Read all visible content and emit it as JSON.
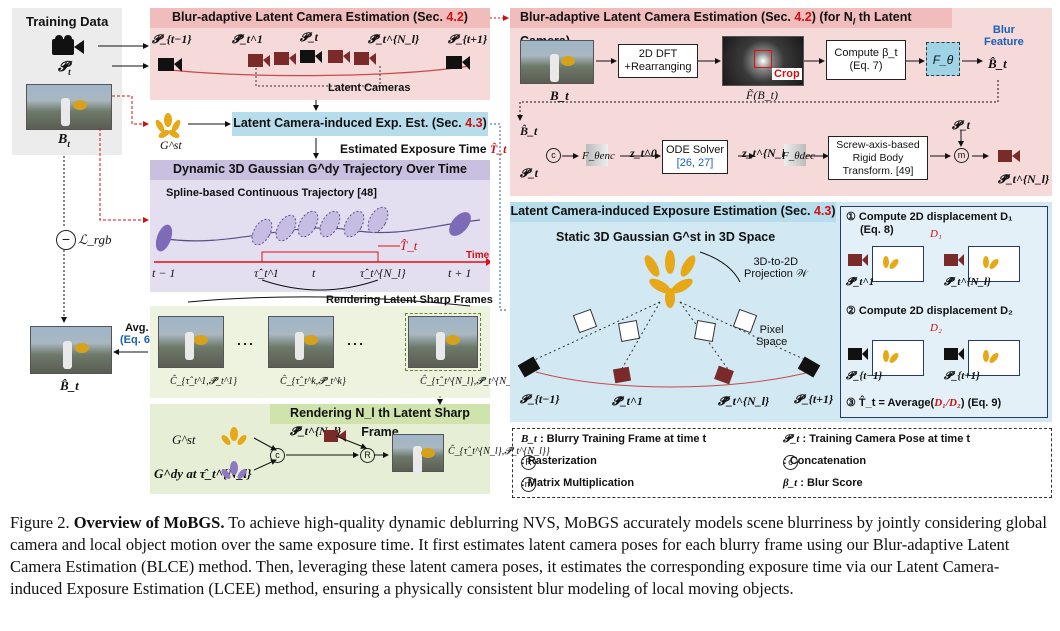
{
  "training_data": {
    "title": "Training Data",
    "pose": "𝓟",
    "pose_sub": "t",
    "frame": "B",
    "frame_sub": "t"
  },
  "blce": {
    "title_prefix": "Blur-adaptive Latent Camera Estimation (Sec. ",
    "title_ref": "4.2",
    "title_suffix": ")",
    "cams": [
      "𝓟_{t−1}",
      "𝓟̂_t^1",
      "𝓟_t",
      "𝓟̂_t^{N_l}",
      "𝓟_{t+1}"
    ],
    "latent_label": "Latent Cameras"
  },
  "blce_detail": {
    "title_prefix": "Blur-adaptive Latent Camera Estimation (Sec. ",
    "title_ref": "4.2",
    "title_suffix": ") (for N",
    "title_end": " th Latent Camera)",
    "dft": "2D DFT\n+Rearranging",
    "crop": "Crop",
    "fft_label": "F̃(B_t)",
    "compute_beta": "Compute β_t",
    "eq": "(Eq. 7)",
    "ftheta": "F_θ",
    "blur_feature": "Blur\nFeature",
    "blur_feature_sym": "B̂_t",
    "bt": "B_t",
    "ode": "ODE Solver",
    "ode_refs": "[26, 27]",
    "screw": "Screw-axis-based\nRigid Body\nTransform. [49]",
    "fenc": "F_θenc",
    "fdec": "F_θdec",
    "z0": "z_t^0",
    "znl": "z_t^{N_l}",
    "pt": "𝓟_t",
    "pout": "𝓟̂_t^{N_l}"
  },
  "lcee_small": {
    "title_prefix": "Latent Camera-induced Exp. Est. (Sec. ",
    "title_ref": "4.3",
    "title_suffix": ")",
    "gst": "G^st",
    "est_exp": "Estimated Exposure Time",
    "est_sym": "T̂_t"
  },
  "dynamic": {
    "title": "Dynamic 3D Gaussian G^dy Trajectory Over Time",
    "spline": "Spline-based Continuous Trajectory [48]",
    "time": "Time",
    "ticks": [
      "t − 1",
      "τ̂_t^1",
      "t",
      "τ̂_t^{N_l}",
      "t + 1"
    ],
    "rendering": "Rendering Latent Sharp Frames",
    "tsym": "T̂_t"
  },
  "render": {
    "avg": "Avg.",
    "eq": "(Eq. 6)",
    "out": "B̂_t",
    "lrgb": "ℒ_rgb",
    "labels": [
      "Ĉ_{τ̂_t^1,𝓟̂_t^1}",
      "Ĉ_{τ̂_t^k,𝓟̂_t^k}",
      "Ĉ_{τ̂_t^{N_l},𝓟̂_t^{N_l}}"
    ],
    "dots": "⋯"
  },
  "render_nl": {
    "title": "Rendering N_l th Latent Sharp Frame",
    "gst": "G^st",
    "gdy": "G^dy at τ̂_t^{N_l}",
    "pose": "𝓟̂_t^{N_l}",
    "out": "Ĉ_{τ̂_t^{N_l},𝓟̂_t^{N_l}}"
  },
  "lcee": {
    "title_prefix": "Latent Camera-induced Exposure Estimation (Sec. ",
    "title_ref": "4.3",
    "title_suffix": ")",
    "static": "Static 3D Gaussian G^st in 3D Space",
    "proj": "3D-to-2D\nProjection 𝒲",
    "pixel": "Pixel\nSpace",
    "cams": [
      "𝓟_{t−1}",
      "𝓟̂_t^1",
      "𝓟̂_t^{N_l}",
      "𝓟_{t+1}"
    ],
    "step1": "① Compute 2D displacement D₁",
    "step1_eq": "(Eq. 8)",
    "step2": "② Compute 2D displacement D₂",
    "step3_prefix": "③  T̂_t = Average(",
    "step3_mid": "D₁/D₂",
    "step3_suffix": ") (Eq. 9)",
    "d1": "D₁",
    "d2": "D₂",
    "cam_labels_1": [
      "𝓟̂_t^1",
      "𝓟̂_t^{N_l}"
    ],
    "cam_labels_2": [
      "𝓟_{t−1}",
      "𝓟_{t+1}"
    ]
  },
  "legend": {
    "items": [
      {
        "sym": "B_t",
        "text": " : Blurry Training Frame at time t"
      },
      {
        "sym": "𝓟_t",
        "text": " : Training Camera Pose at time t"
      },
      {
        "sym": "R",
        "text": " : Rasterization"
      },
      {
        "sym": "c",
        "text": " : Concatenation"
      },
      {
        "sym": "m",
        "text": " : Matrix Multiplication"
      },
      {
        "sym": "β_t",
        "text": " : Blur Score"
      }
    ]
  },
  "caption": {
    "label": "Figure 2. ",
    "title": "Overview of MoBGS.",
    "body": " To achieve high-quality dynamic deblurring NVS, MoBGS accurately models scene blurriness by jointly considering global camera and local object motion over the same exposure time.  It first estimates latent camera poses for each blurry frame using our Blur-adaptive Latent Camera Estimation (BLCE) method.  Then, leveraging these latent camera poses, it estimates the corresponding exposure time via our Latent Camera-induced Exposure Estimation (LCEE) method, ensuring a physically consistent blur modeling of local moving objects."
  },
  "colors": {
    "pink": "#f4d5d5",
    "pink_hdr": "#f0bcbc",
    "blue": "#d2e8f2",
    "blue_hdr": "#b7dcec",
    "purple": "#dcd6ea",
    "purple_hdr": "#c9c0e0",
    "green": "#e6efd6",
    "green_hdr": "#cfe3ad",
    "gray": "#ececec",
    "gaussian": "#e7a817",
    "camera_dark": "#111111",
    "camera_red": "#7a2a28"
  }
}
